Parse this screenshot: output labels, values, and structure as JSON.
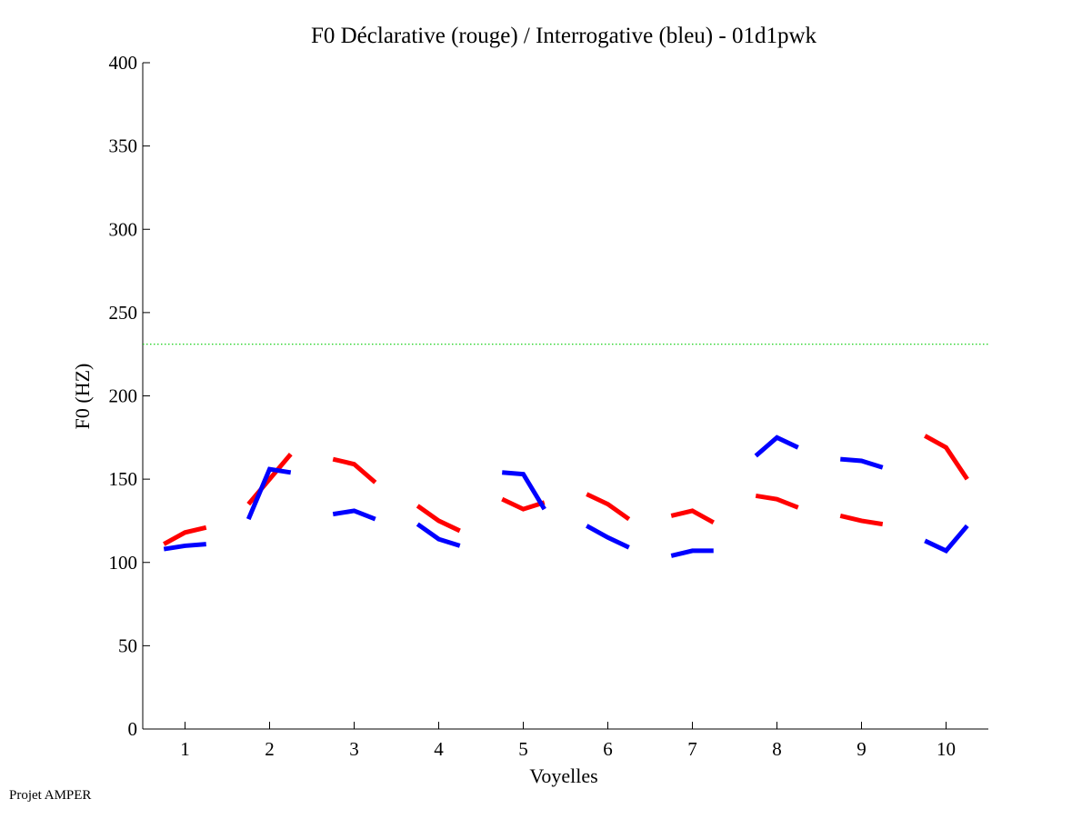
{
  "chart_data": {
    "type": "line",
    "title": "F0 Déclarative (rouge) / Interrogative (bleu) - 01d1pwk",
    "xlabel": "Voyelles",
    "ylabel": "F0 (HZ)",
    "ylim": [
      0,
      400
    ],
    "xlim": [
      0.5,
      10.5
    ],
    "yticks": [
      0,
      50,
      100,
      150,
      200,
      250,
      300,
      350,
      400
    ],
    "xticks": [
      1,
      2,
      3,
      4,
      5,
      6,
      7,
      8,
      9,
      10
    ],
    "grid": false,
    "reference_line": {
      "y": 231,
      "color": "#00cc00",
      "style": "dotted"
    },
    "series": [
      {
        "color": "#ff0000",
        "segments": [
          {
            "x": [
              0.75,
              1.0,
              1.25
            ],
            "y": [
              111,
              118,
              121
            ]
          },
          {
            "x": [
              1.75,
              2.0,
              2.25
            ],
            "y": [
              135,
              150,
              165
            ]
          },
          {
            "x": [
              2.75,
              3.0,
              3.25
            ],
            "y": [
              162,
              159,
              148
            ]
          },
          {
            "x": [
              3.75,
              4.0,
              4.25
            ],
            "y": [
              134,
              125,
              119
            ]
          },
          {
            "x": [
              4.75,
              5.0,
              5.25
            ],
            "y": [
              138,
              132,
              136
            ]
          },
          {
            "x": [
              5.75,
              6.0,
              6.25
            ],
            "y": [
              141,
              135,
              126
            ]
          },
          {
            "x": [
              6.75,
              7.0,
              7.25
            ],
            "y": [
              128,
              131,
              124
            ]
          },
          {
            "x": [
              7.75,
              8.0,
              8.25
            ],
            "y": [
              140,
              138,
              133
            ]
          },
          {
            "x": [
              8.75,
              9.0,
              9.25
            ],
            "y": [
              128,
              125,
              123
            ]
          },
          {
            "x": [
              9.75,
              10.0,
              10.25
            ],
            "y": [
              176,
              169,
              150
            ]
          }
        ]
      },
      {
        "color": "#0000ff",
        "segments": [
          {
            "x": [
              0.75,
              1.0,
              1.25
            ],
            "y": [
              108,
              110,
              111
            ]
          },
          {
            "x": [
              1.75,
              2.0,
              2.25
            ],
            "y": [
              126,
              156,
              154
            ]
          },
          {
            "x": [
              2.75,
              3.0,
              3.25
            ],
            "y": [
              129,
              131,
              126
            ]
          },
          {
            "x": [
              3.75,
              4.0,
              4.25
            ],
            "y": [
              123,
              114,
              110
            ]
          },
          {
            "x": [
              4.75,
              5.0,
              5.25
            ],
            "y": [
              154,
              153,
              132
            ]
          },
          {
            "x": [
              5.75,
              6.0,
              6.25
            ],
            "y": [
              122,
              115,
              109
            ]
          },
          {
            "x": [
              6.75,
              7.0,
              7.25
            ],
            "y": [
              104,
              107,
              107
            ]
          },
          {
            "x": [
              7.75,
              8.0,
              8.25
            ],
            "y": [
              164,
              175,
              169
            ]
          },
          {
            "x": [
              8.75,
              9.0,
              9.25
            ],
            "y": [
              162,
              161,
              157
            ]
          },
          {
            "x": [
              9.75,
              10.0,
              10.25
            ],
            "y": [
              113,
              107,
              122
            ]
          }
        ]
      }
    ]
  },
  "footer": "Projet AMPER"
}
